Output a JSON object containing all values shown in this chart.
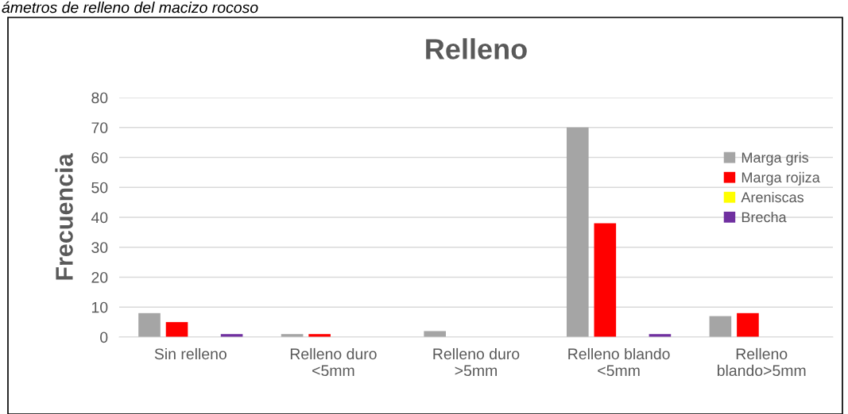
{
  "chart_data": {
    "type": "bar",
    "title": "Relleno",
    "ylabel": "Frecuencia",
    "annotations": [
      "ámetros de relleno del macizo rocoso"
    ],
    "categories": [
      "Sin relleno",
      "Relleno duro\n<5mm",
      "Relleno duro\n>5mm",
      "Relleno blando\n<5mm",
      "Relleno\nblando>5mm"
    ],
    "series": [
      {
        "name": "Marga gris",
        "color": "#a5a5a5",
        "values": [
          8,
          1,
          2,
          70,
          7
        ]
      },
      {
        "name": "Marga rojiza",
        "color": "#ff0000",
        "values": [
          5,
          1,
          0,
          38,
          8
        ]
      },
      {
        "name": "Areniscas",
        "color": "#ffff00",
        "values": [
          0,
          0,
          0,
          0,
          0
        ]
      },
      {
        "name": "Brecha",
        "color": "#7030a0",
        "values": [
          1,
          0,
          0,
          1,
          0
        ]
      }
    ],
    "ylim": [
      0,
      80
    ],
    "yticks": [
      0,
      10,
      20,
      30,
      40,
      50,
      60,
      70,
      80
    ],
    "grid": "y",
    "legend": "right"
  }
}
